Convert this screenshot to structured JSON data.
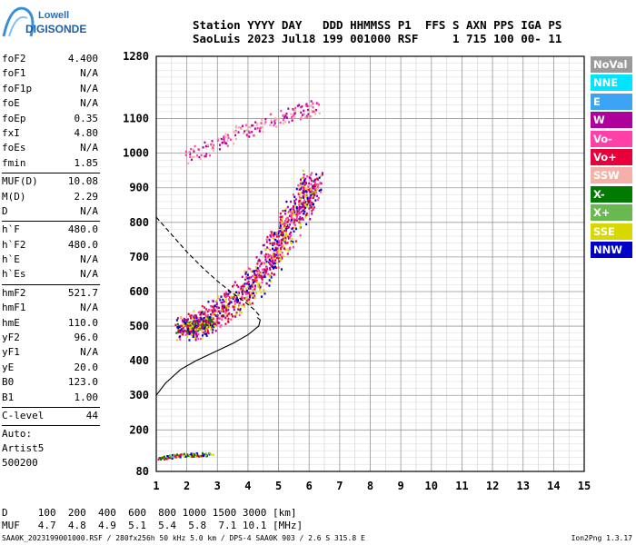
{
  "logo": {
    "line1": "Lowell",
    "line2": "DIGISONDE"
  },
  "header": {
    "line1": "Station YYYY DAY   DDD HHMMSS P1  FFS S AXN PPS IGA PS",
    "line2": "SaoLuis 2023 Jul18 199 001000 RSF     1 715 100 00- 11"
  },
  "params": [
    {
      "label": "foF2",
      "value": "4.400"
    },
    {
      "label": "foF1",
      "value": "N/A"
    },
    {
      "label": "foF1p",
      "value": "N/A"
    },
    {
      "label": "foE",
      "value": "N/A"
    },
    {
      "label": "foEp",
      "value": "0.35"
    },
    {
      "label": "fxI",
      "value": "4.80"
    },
    {
      "label": "foEs",
      "value": "N/A"
    },
    {
      "label": "fmin",
      "value": "1.85"
    },
    {
      "label": "MUF(D)",
      "value": "10.08",
      "sep": true
    },
    {
      "label": "M(D)",
      "value": "2.29"
    },
    {
      "label": "D",
      "value": "N/A"
    },
    {
      "label": "h`F",
      "value": "480.0",
      "sep": true
    },
    {
      "label": "h`F2",
      "value": "480.0"
    },
    {
      "label": "h`E",
      "value": "N/A"
    },
    {
      "label": "h`Es",
      "value": "N/A"
    },
    {
      "label": "hmF2",
      "value": "521.7",
      "sep": true
    },
    {
      "label": "hmF1",
      "value": "N/A"
    },
    {
      "label": "hmE",
      "value": "110.0"
    },
    {
      "label": "yF2",
      "value": "96.0"
    },
    {
      "label": "yF1",
      "value": "N/A"
    },
    {
      "label": "yE",
      "value": "20.0"
    },
    {
      "label": "B0",
      "value": "123.0"
    },
    {
      "label": "B1",
      "value": "1.00"
    },
    {
      "label": "C-level",
      "value": "44",
      "sep": true
    }
  ],
  "auto": [
    "Auto:",
    "Artist5",
    "500200"
  ],
  "legend": [
    {
      "label": "NoVal",
      "color": "#9a9a9a"
    },
    {
      "label": "NNE",
      "color": "#00e5ff"
    },
    {
      "label": "E",
      "color": "#3da3f5"
    },
    {
      "label": "W",
      "color": "#b0009c"
    },
    {
      "label": "Vo-",
      "color": "#ff40a8"
    },
    {
      "label": "Vo+",
      "color": "#e8003a"
    },
    {
      "label": "SSW",
      "color": "#f5b0a8"
    },
    {
      "label": "X-",
      "color": "#007a00"
    },
    {
      "label": "X+",
      "color": "#6ab850"
    },
    {
      "label": "SSE",
      "color": "#d8d800"
    },
    {
      "label": "NNW",
      "color": "#0000c8"
    }
  ],
  "muf": {
    "line1": "D     100  200  400  600  800 1000 1500 3000 [km]",
    "line2": "MUF   4.7  4.8  4.9  5.1  5.4  5.8  7.1 10.1 [MHz]"
  },
  "footer": {
    "left": "SAA0K_2023199001000.RSF / 280fx256h 50 kHz 5.0 km / DPS-4 SAA0K 903 / 2.6 S 315.8 E",
    "right": "Ion2Png 1.3.17"
  },
  "chart_data": {
    "type": "scatter",
    "title": "",
    "xlabel": "",
    "ylabel": "",
    "xlim": [
      1,
      15
    ],
    "ylim": [
      80,
      1280
    ],
    "x_ticks": [
      1,
      2,
      3,
      4,
      5,
      6,
      7,
      8,
      9,
      10,
      11,
      12,
      13,
      14,
      15
    ],
    "y_ticks": [
      80,
      200,
      300,
      400,
      500,
      600,
      700,
      800,
      900,
      1000,
      1100,
      1280
    ],
    "grid": true,
    "legend_placement": "right",
    "clusters": [
      {
        "name": "F2 trace",
        "color_mix": [
          "#b0009c",
          "#ff40a8",
          "#d8d800",
          "#0000c8",
          "#e8003a"
        ],
        "path": [
          [
            1.9,
            490
          ],
          [
            2.4,
            510
          ],
          [
            3.0,
            540
          ],
          [
            3.6,
            580
          ],
          [
            4.2,
            630
          ],
          [
            4.7,
            690
          ],
          [
            5.1,
            760
          ],
          [
            5.5,
            820
          ],
          [
            5.9,
            880
          ],
          [
            6.1,
            920
          ]
        ],
        "spread": [
          0.35,
          35
        ],
        "n": 1100
      },
      {
        "name": "upper trace",
        "color_mix": [
          "#b0009c",
          "#ff40a8",
          "#f5b0a8"
        ],
        "path": [
          [
            2.0,
            985
          ],
          [
            2.7,
            1020
          ],
          [
            3.4,
            1050
          ],
          [
            4.2,
            1080
          ],
          [
            5.0,
            1105
          ],
          [
            5.8,
            1125
          ],
          [
            6.3,
            1140
          ]
        ],
        "spread": [
          0.15,
          20
        ],
        "n": 200
      },
      {
        "name": "F2 low cluster",
        "color_mix": [
          "#0000c8",
          "#d8d800",
          "#b0009c",
          "#007a00",
          "#e8003a"
        ],
        "path": [
          [
            1.8,
            495
          ],
          [
            2.3,
            505
          ],
          [
            2.8,
            515
          ]
        ],
        "spread": [
          0.2,
          14
        ],
        "n": 220
      },
      {
        "name": "low range",
        "color_mix": [
          "#0000c8",
          "#007a00",
          "#6ab850",
          "#d8d800",
          "#e8003a"
        ],
        "path": [
          [
            1.0,
            120
          ],
          [
            1.6,
            128
          ],
          [
            2.2,
            130
          ],
          [
            2.8,
            132
          ]
        ],
        "spread": [
          0.12,
          5
        ],
        "n": 90
      }
    ],
    "profile_solid": [
      [
        1.0,
        300
      ],
      [
        1.3,
        335
      ],
      [
        1.8,
        375
      ],
      [
        2.3,
        400
      ],
      [
        2.9,
        425
      ],
      [
        3.5,
        450
      ],
      [
        4.0,
        475
      ],
      [
        4.35,
        500
      ],
      [
        4.4,
        518
      ],
      [
        4.3,
        525
      ]
    ],
    "profile_dashed": [
      [
        1.0,
        815
      ],
      [
        1.5,
        765
      ],
      [
        2.0,
        715
      ],
      [
        2.5,
        670
      ],
      [
        3.0,
        630
      ],
      [
        3.5,
        595
      ],
      [
        3.9,
        570
      ],
      [
        4.2,
        548
      ],
      [
        4.4,
        528
      ]
    ]
  }
}
